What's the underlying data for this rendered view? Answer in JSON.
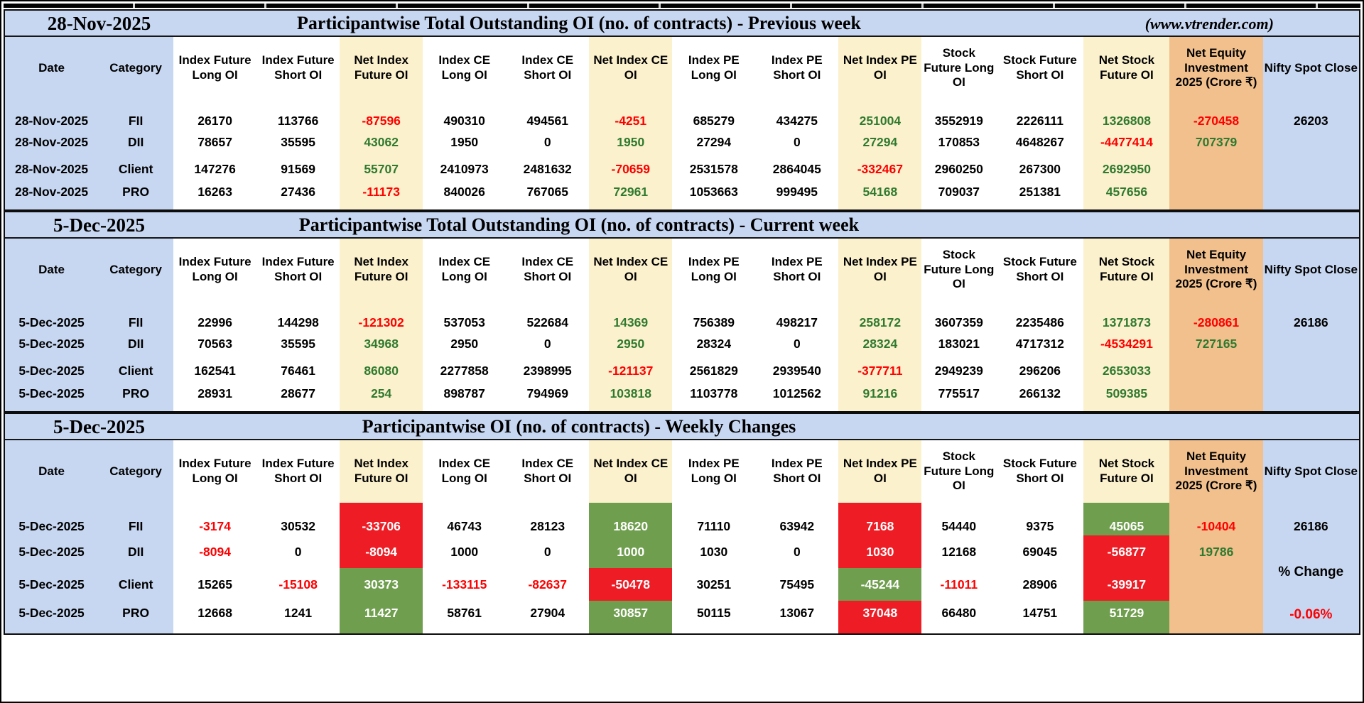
{
  "columns": [
    "Date",
    "Category",
    "Index Future Long OI",
    "Index Future Short OI",
    "Net Index Future OI",
    "Index CE Long OI",
    "Index CE Short OI",
    "Net Index CE OI",
    "Index PE Long OI",
    "Index PE Short OI",
    "Net Index PE OI",
    "Stock Future Long OI",
    "Stock Future Short OI",
    "Net Stock Future OI",
    "Net Equity Investment 2025 (Crore ₹)",
    "Nifty Spot Close"
  ],
  "colors": {
    "title_bar_blue": "#c7d7f1",
    "column_cream": "#fcf1cd",
    "column_orange": "#f1c08d",
    "positive_green_text": "#2f7a2f",
    "negative_red_text": "#fe0000",
    "change_red_bg": "#ee1c25",
    "change_green_bg": "#6f9e4e"
  },
  "sections": [
    {
      "id": "previous-week",
      "date": "28-Nov-2025",
      "title": "Participantwise Total Outstanding OI (no. of contracts) - Previous week",
      "site": "(www.vtrender.com)",
      "rows": [
        {
          "date": "28-Nov-2025",
          "category": "FII",
          "vals": [
            "26170",
            "113766",
            "-87596",
            "490310",
            "494561",
            "-4251",
            "685279",
            "434275",
            "251004",
            "3552919",
            "2226111",
            "1326808",
            "-270458",
            "26203"
          ],
          "styles": [
            "k",
            "k",
            "r",
            "k",
            "k",
            "r",
            "k",
            "k",
            "g",
            "k",
            "k",
            "g",
            "r",
            "k"
          ]
        },
        {
          "date": "28-Nov-2025",
          "category": "DII",
          "vals": [
            "78657",
            "35595",
            "43062",
            "1950",
            "0",
            "1950",
            "27294",
            "0",
            "27294",
            "170853",
            "4648267",
            "-4477414",
            "707379",
            ""
          ],
          "styles": [
            "k",
            "k",
            "g",
            "k",
            "k",
            "g",
            "k",
            "k",
            "g",
            "k",
            "k",
            "r",
            "g",
            ""
          ]
        },
        {
          "date": "28-Nov-2025",
          "category": "Client",
          "vals": [
            "147276",
            "91569",
            "55707",
            "2410973",
            "2481632",
            "-70659",
            "2531578",
            "2864045",
            "-332467",
            "2960250",
            "267300",
            "2692950",
            "",
            ""
          ],
          "styles": [
            "k",
            "k",
            "g",
            "k",
            "k",
            "r",
            "k",
            "k",
            "r",
            "k",
            "k",
            "g",
            "",
            ""
          ]
        },
        {
          "date": "28-Nov-2025",
          "category": "PRO",
          "vals": [
            "16263",
            "27436",
            "-11173",
            "840026",
            "767065",
            "72961",
            "1053663",
            "999495",
            "54168",
            "709037",
            "251381",
            "457656",
            "",
            ""
          ],
          "styles": [
            "k",
            "k",
            "r",
            "k",
            "k",
            "g",
            "k",
            "k",
            "g",
            "k",
            "k",
            "g",
            "",
            ""
          ]
        }
      ]
    },
    {
      "id": "current-week",
      "date": "5-Dec-2025",
      "title": "Participantwise Total Outstanding OI (no. of contracts) - Current week",
      "rows": [
        {
          "date": "5-Dec-2025",
          "category": "FII",
          "vals": [
            "22996",
            "144298",
            "-121302",
            "537053",
            "522684",
            "14369",
            "756389",
            "498217",
            "258172",
            "3607359",
            "2235486",
            "1371873",
            "-280861",
            "26186"
          ],
          "styles": [
            "k",
            "k",
            "r",
            "k",
            "k",
            "g",
            "k",
            "k",
            "g",
            "k",
            "k",
            "g",
            "r",
            "k"
          ]
        },
        {
          "date": "5-Dec-2025",
          "category": "DII",
          "vals": [
            "70563",
            "35595",
            "34968",
            "2950",
            "0",
            "2950",
            "28324",
            "0",
            "28324",
            "183021",
            "4717312",
            "-4534291",
            "727165",
            ""
          ],
          "styles": [
            "k",
            "k",
            "g",
            "k",
            "k",
            "g",
            "k",
            "k",
            "g",
            "k",
            "k",
            "r",
            "g",
            ""
          ]
        },
        {
          "date": "5-Dec-2025",
          "category": "Client",
          "vals": [
            "162541",
            "76461",
            "86080",
            "2277858",
            "2398995",
            "-121137",
            "2561829",
            "2939540",
            "-377711",
            "2949239",
            "296206",
            "2653033",
            "",
            ""
          ],
          "styles": [
            "k",
            "k",
            "g",
            "k",
            "k",
            "r",
            "k",
            "k",
            "r",
            "k",
            "k",
            "g",
            "",
            ""
          ]
        },
        {
          "date": "5-Dec-2025",
          "category": "PRO",
          "vals": [
            "28931",
            "28677",
            "254",
            "898787",
            "794969",
            "103818",
            "1103778",
            "1012562",
            "91216",
            "775517",
            "266132",
            "509385",
            "",
            ""
          ],
          "styles": [
            "k",
            "k",
            "g",
            "k",
            "k",
            "g",
            "k",
            "k",
            "g",
            "k",
            "k",
            "g",
            "",
            ""
          ]
        }
      ]
    },
    {
      "id": "weekly-changes",
      "date": "5-Dec-2025",
      "title": "Participantwise OI (no. of contracts) - Weekly Changes",
      "pct_change": {
        "label": "% Change",
        "value": "-0.06%"
      },
      "rows": [
        {
          "date": "5-Dec-2025",
          "category": "FII",
          "vals": [
            "-3174",
            "30532",
            "-33706",
            "46743",
            "28123",
            "18620",
            "71110",
            "63942",
            "7168",
            "54440",
            "9375",
            "45065",
            "-10404",
            "26186"
          ],
          "styles": [
            "r",
            "k",
            "R",
            "k",
            "k",
            "G",
            "k",
            "k",
            "R",
            "k",
            "k",
            "G",
            "r",
            "k"
          ]
        },
        {
          "date": "5-Dec-2025",
          "category": "DII",
          "vals": [
            "-8094",
            "0",
            "-8094",
            "1000",
            "0",
            "1000",
            "1030",
            "0",
            "1030",
            "12168",
            "69045",
            "-56877",
            "19786",
            ""
          ],
          "styles": [
            "r",
            "k",
            "R",
            "k",
            "k",
            "G",
            "k",
            "k",
            "R",
            "k",
            "k",
            "R",
            "g",
            ""
          ]
        },
        {
          "date": "5-Dec-2025",
          "category": "Client",
          "vals": [
            "15265",
            "-15108",
            "30373",
            "-133115",
            "-82637",
            "-50478",
            "30251",
            "75495",
            "-45244",
            "-11011",
            "28906",
            "-39917",
            "",
            ""
          ],
          "styles": [
            "k",
            "r",
            "G",
            "r",
            "r",
            "R",
            "k",
            "k",
            "G",
            "r",
            "k",
            "R",
            "",
            ""
          ]
        },
        {
          "date": "5-Dec-2025",
          "category": "PRO",
          "vals": [
            "12668",
            "1241",
            "11427",
            "58761",
            "27904",
            "30857",
            "50115",
            "13067",
            "37048",
            "66480",
            "14751",
            "51729",
            "",
            ""
          ],
          "styles": [
            "k",
            "k",
            "G",
            "k",
            "k",
            "G",
            "k",
            "k",
            "R",
            "k",
            "k",
            "G",
            "",
            ""
          ]
        }
      ]
    }
  ]
}
